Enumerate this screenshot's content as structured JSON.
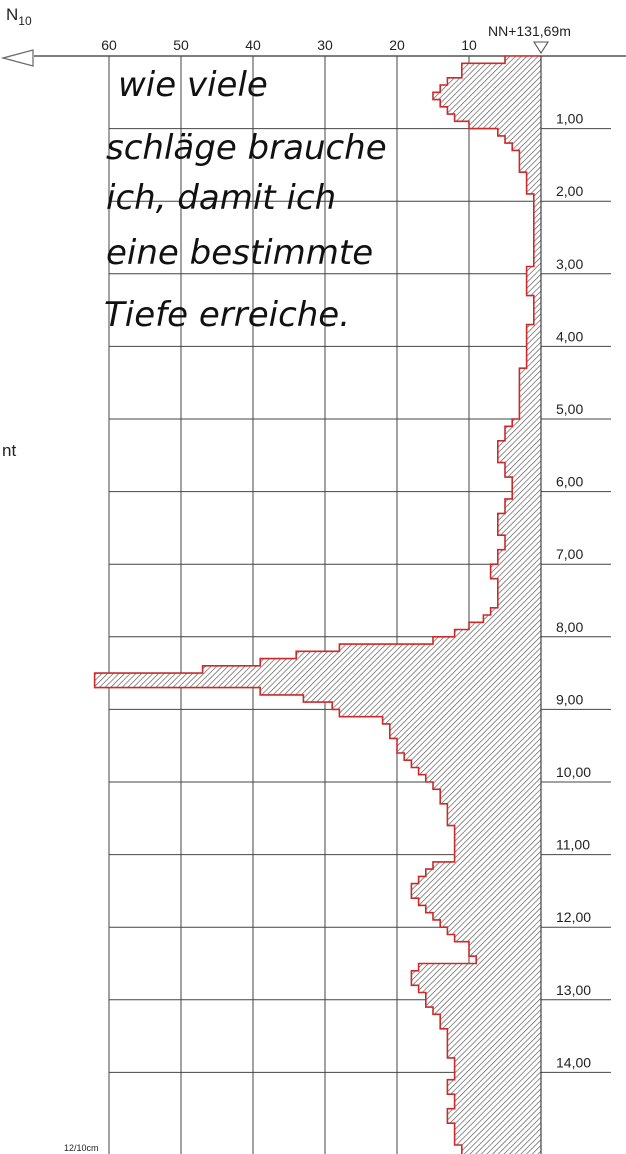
{
  "chart_data": {
    "type": "bar",
    "orientation": "horizontal-step",
    "title": "N10",
    "title_main": "N",
    "title_sub": "10",
    "reference_label": "NN+131,69m",
    "x_ticks": [
      "60",
      "50",
      "40",
      "30",
      "20",
      "10"
    ],
    "x_tick_values": [
      60,
      50,
      40,
      30,
      20,
      10
    ],
    "xlim": [
      0,
      62
    ],
    "x_direction": "reversed",
    "y_ticks": [
      "1,00",
      "2,00",
      "3,00",
      "4,00",
      "5,00",
      "6,00",
      "7,00",
      "8,00",
      "9,00",
      "10,00",
      "11,00",
      "12,00",
      "13,00",
      "14,00"
    ],
    "y_tick_values": [
      1,
      2,
      3,
      4,
      5,
      6,
      7,
      8,
      9,
      10,
      11,
      12,
      13,
      14
    ],
    "ylim": [
      0,
      15.4
    ],
    "grid": true,
    "unit_label": "12/10cm",
    "side_text": "nt",
    "annotation_lines": [
      "wie viele",
      "schläge brauche",
      "ich, damit ich",
      "eine bestimmte",
      "Tiefe erreiche."
    ],
    "colors": {
      "outline": "#cc2a2a",
      "grid": "#444444",
      "hatch": "#555555"
    },
    "series": [
      {
        "depth": [
          0.0,
          0.1,
          0.2,
          0.3,
          0.4,
          0.5,
          0.6,
          0.7,
          0.8,
          0.9,
          1.0,
          1.1,
          1.2,
          1.3,
          1.4,
          1.5,
          1.6,
          1.7,
          1.8,
          1.9,
          2.0,
          2.1,
          2.2,
          2.3,
          2.4,
          2.5,
          2.6,
          2.7,
          2.8,
          2.9,
          3.0,
          3.1,
          3.2,
          3.3,
          3.4,
          3.5,
          3.6,
          3.7,
          3.8,
          3.9,
          4.0,
          4.1,
          4.2,
          4.3,
          4.4,
          4.5,
          4.6,
          4.7,
          4.8,
          4.9,
          5.0,
          5.1,
          5.2,
          5.3,
          5.4,
          5.5,
          5.6,
          5.7,
          5.8,
          5.9,
          6.0,
          6.1,
          6.2,
          6.3,
          6.4,
          6.5,
          6.6,
          6.7,
          6.8,
          6.9,
          7.0,
          7.1,
          7.2,
          7.3,
          7.4,
          7.5,
          7.6,
          7.7,
          7.8,
          7.9,
          8.0,
          8.1,
          8.2,
          8.3,
          8.4,
          8.5,
          8.6,
          8.7,
          8.8,
          8.9,
          9.0,
          9.1,
          9.2,
          9.3,
          9.4,
          9.5,
          9.6,
          9.7,
          9.8,
          9.9,
          10.0,
          10.1,
          10.2,
          10.3,
          10.4,
          10.5,
          10.6,
          10.7,
          10.8,
          10.9,
          11.0,
          11.1,
          11.2,
          11.3,
          11.4,
          11.5,
          11.6,
          11.7,
          11.8,
          11.9,
          12.0,
          12.1,
          12.2,
          12.3,
          12.4,
          12.5,
          12.6,
          12.7,
          12.8,
          12.9,
          13.0,
          13.1,
          13.2,
          13.3,
          13.4,
          13.5,
          13.6,
          13.7,
          13.8,
          13.9,
          14.0,
          14.1,
          14.2,
          14.3,
          14.4,
          14.5,
          14.6,
          14.7,
          14.8,
          14.9,
          15.0,
          15.1,
          15.2
        ],
        "values": [
          5,
          11,
          11,
          13,
          14,
          15,
          14,
          13,
          12,
          10,
          6,
          5,
          4,
          3,
          3,
          3,
          2,
          2,
          2,
          1,
          1,
          1,
          1,
          1,
          1,
          1,
          1,
          1,
          1,
          2,
          2,
          2,
          2,
          1,
          1,
          1,
          1,
          2,
          2,
          2,
          2,
          2,
          2,
          3,
          3,
          3,
          3,
          3,
          3,
          3,
          4,
          5,
          5,
          6,
          6,
          6,
          5,
          5,
          4,
          4,
          4,
          5,
          5,
          6,
          6,
          6,
          5,
          5,
          6,
          6,
          7,
          7,
          6,
          6,
          6,
          6,
          7,
          8,
          10,
          12,
          15,
          28,
          34,
          39,
          47,
          62,
          62,
          39,
          33,
          29,
          28,
          22,
          21,
          21,
          20,
          20,
          19,
          18,
          17,
          16,
          15,
          14,
          14,
          13,
          13,
          13,
          12,
          12,
          12,
          12,
          12,
          15,
          16,
          17,
          18,
          18,
          17,
          16,
          15,
          14,
          13,
          12,
          10,
          10,
          9,
          17,
          18,
          18,
          17,
          16,
          16,
          15,
          14,
          14,
          13,
          13,
          13,
          13,
          12,
          12,
          12,
          13,
          13,
          12,
          12,
          13,
          13,
          12,
          12,
          12,
          11,
          11,
          11
        ]
      }
    ]
  }
}
